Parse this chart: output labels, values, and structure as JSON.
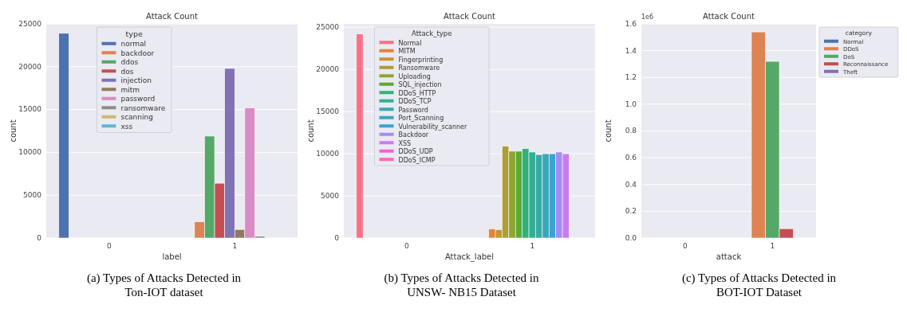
{
  "chart_data": [
    {
      "type": "bar",
      "title": "Attack Count",
      "xlabel": "label",
      "ylabel": "count",
      "legend_title": "type",
      "categories": [
        "0",
        "1"
      ],
      "ylim": [
        0,
        25000
      ],
      "yticks": [
        0,
        5000,
        10000,
        15000,
        20000,
        25000
      ],
      "grid": "y",
      "legend": "top",
      "annotations": [
        "(a) Types of Attacks Detected in Ton-IOT dataset"
      ],
      "series": [
        {
          "name": "normal",
          "color": "#4c72b0",
          "values": [
            23900,
            0
          ]
        },
        {
          "name": "backdoor",
          "color": "#dd8452",
          "values": [
            0,
            1900
          ]
        },
        {
          "name": "ddos",
          "color": "#55a868",
          "values": [
            0,
            11900
          ]
        },
        {
          "name": "dos",
          "color": "#c44e52",
          "values": [
            0,
            6400
          ]
        },
        {
          "name": "injection",
          "color": "#8172b3",
          "values": [
            0,
            19800
          ]
        },
        {
          "name": "mitm",
          "color": "#937860",
          "values": [
            0,
            1000
          ]
        },
        {
          "name": "password",
          "color": "#da8bc3",
          "values": [
            0,
            15200
          ]
        },
        {
          "name": "ransomware",
          "color": "#8c8c8c",
          "values": [
            0,
            200
          ]
        },
        {
          "name": "scanning",
          "color": "#ccb974",
          "values": [
            0,
            null
          ]
        },
        {
          "name": "xss",
          "color": "#64b5cd",
          "values": [
            0,
            null
          ]
        }
      ]
    },
    {
      "type": "bar",
      "title": "Attack Count",
      "xlabel": "Attack_label",
      "ylabel": "count",
      "legend_title": "Attack_type",
      "categories": [
        "0",
        "1"
      ],
      "ylim": [
        0,
        25400
      ],
      "yticks": [
        0,
        5000,
        10000,
        15000,
        20000,
        25000
      ],
      "grid": "y",
      "legend": "top",
      "annotations": [
        "(b) Types of Attacks Detected in UNSW- NB15 Dataset"
      ],
      "series": [
        {
          "name": "Normal",
          "color": "#f77189",
          "values": [
            24200,
            0
          ]
        },
        {
          "name": "MITM",
          "color": "#e7823a",
          "values": [
            0,
            1100
          ]
        },
        {
          "name": "Fingerprinting",
          "color": "#c69432",
          "values": [
            0,
            1000
          ]
        },
        {
          "name": "Ransomware",
          "color": "#ae9d31",
          "values": [
            0,
            10900
          ]
        },
        {
          "name": "Uploading",
          "color": "#8ea531",
          "values": [
            0,
            10300
          ]
        },
        {
          "name": "SQL_injection",
          "color": "#5aab32",
          "values": [
            0,
            10300
          ]
        },
        {
          "name": "DDoS_HTTP",
          "color": "#33b07a",
          "values": [
            0,
            10600
          ]
        },
        {
          "name": "DDoS_TCP",
          "color": "#35ad95",
          "values": [
            0,
            10200
          ]
        },
        {
          "name": "Password",
          "color": "#37aaa6",
          "values": [
            0,
            9900
          ]
        },
        {
          "name": "Port_Scanning",
          "color": "#3aa7b8",
          "values": [
            0,
            10000
          ]
        },
        {
          "name": "Vulnerability_scanner",
          "color": "#3ba3d2",
          "values": [
            0,
            10000
          ]
        },
        {
          "name": "Backdoor",
          "color": "#a48cf4",
          "values": [
            0,
            10200
          ]
        },
        {
          "name": "XSS",
          "color": "#cc7af4",
          "values": [
            0,
            10000
          ]
        },
        {
          "name": "DDoS_UDP",
          "color": "#f45fdc",
          "values": [
            0,
            null
          ]
        },
        {
          "name": "DDoS_ICMP",
          "color": "#f569b5",
          "values": [
            0,
            null
          ]
        }
      ]
    },
    {
      "type": "bar",
      "title": "Attack Count",
      "xlabel": "attack",
      "ylabel": "count",
      "legend_title": "category",
      "categories": [
        "0",
        "1"
      ],
      "ylim": [
        0,
        1.6
      ],
      "yticks": [
        {
          "value": 0,
          "label": "0.0"
        },
        {
          "value": 0.2,
          "label": "0.2"
        },
        {
          "value": 0.4,
          "label": "0.4"
        },
        {
          "value": 0.6,
          "label": "0.6"
        },
        {
          "value": 0.8,
          "label": "0.8"
        },
        {
          "value": 1,
          "label": "1.0"
        },
        {
          "value": 1.2,
          "label": "1.2"
        },
        {
          "value": 1.4,
          "label": "1.4"
        },
        {
          "value": 1.6,
          "label": "1.6"
        }
      ],
      "grid": "y",
      "legend": "right",
      "annotations": [
        "1e6",
        "(c) Types of Attacks Detected in BOT-IOT Dataset"
      ],
      "series": [
        {
          "name": "Normal",
          "color": "#4c72b0",
          "values": [
            0,
            0
          ]
        },
        {
          "name": "DDoS",
          "color": "#dd8452",
          "values": [
            0,
            1.54
          ]
        },
        {
          "name": "DoS",
          "color": "#55a868",
          "values": [
            0,
            1.32
          ]
        },
        {
          "name": "Reconnaissance",
          "color": "#c44e52",
          "values": [
            0,
            0.07
          ]
        },
        {
          "name": "Theft",
          "color": "#8172b3",
          "values": [
            0,
            0
          ]
        }
      ]
    }
  ]
}
